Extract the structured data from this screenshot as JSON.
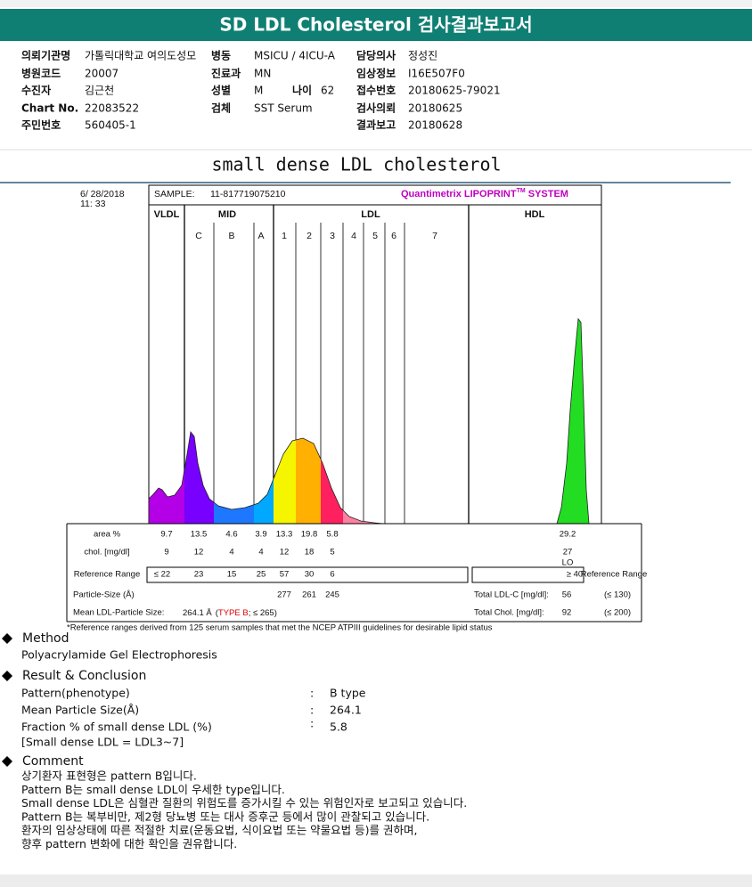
{
  "header": {
    "title": "SD LDL Cholesterol 검사결과보고서"
  },
  "info": [
    [
      {
        "label": "의뢰기관명",
        "value": "가톨릭대학교 여의도성모"
      },
      {
        "label": "병동",
        "value": "MSICU / 4ICU-A"
      },
      {
        "label": "담당의사",
        "value": "정성진"
      }
    ],
    [
      {
        "label": "병원코드",
        "value": "20007"
      },
      {
        "label": "진료과",
        "value": "MN"
      },
      {
        "label": "임상정보",
        "value": "I16E507F0"
      }
    ],
    [
      {
        "label": "수진자",
        "value": "김근천"
      },
      {
        "label": "성별",
        "value": "M"
      },
      {
        "label": "나이",
        "value": "62"
      },
      {
        "label": "접수번호",
        "value": "20180625-79021"
      }
    ],
    [
      {
        "label": "Chart No.",
        "value": "22083522"
      },
      {
        "label": "검체",
        "value": "SST Serum"
      },
      {
        "label": "검사의뢰",
        "value": "20180625"
      }
    ],
    [
      {
        "label": "주민번호",
        "value": "560405-1"
      },
      {
        "label": "결과보고",
        "value": "20180628"
      }
    ]
  ],
  "section_title": "small dense LDL cholesterol",
  "lipoprint": {
    "date": "6/ 28/2018",
    "time": "11: 33",
    "sample_label": "SAMPLE:",
    "sample_id": "11-817719075210",
    "brand": "Quantimetrix LIPOPRINT",
    "tm": "TM",
    "system": " SYSTEM",
    "groups": [
      "VLDL",
      "MID",
      "LDL",
      "HDL"
    ],
    "fractions": [
      "C",
      "B",
      "A",
      "1",
      "2",
      "3",
      "4",
      "5",
      "6",
      "7"
    ],
    "rows": [
      {
        "label": "area %",
        "values": [
          "9.7",
          "13.5",
          "4.6",
          "3.9",
          "13.3",
          "19.8",
          "5.8"
        ],
        "hdl": "29.2"
      },
      {
        "label": "chol. [mg/dl]",
        "values": [
          "9",
          "12",
          "4",
          "4",
          "12",
          "18",
          "5"
        ],
        "hdl": "27",
        "flag": "LO"
      },
      {
        "label": "Reference Range",
        "values": [
          "≤ 22",
          "23",
          "15",
          "25",
          "57",
          "30",
          "6"
        ],
        "hdl": "≥ 40",
        "right_label": "Reference Range"
      }
    ],
    "particle_size": {
      "label": "Particle-Size (Å)",
      "values": [
        "277",
        "261",
        "245"
      ]
    },
    "total_ldl": {
      "label": "Total LDL-C [mg/dl]:",
      "value": "56",
      "range": "(≤ 130)"
    },
    "mean_size": {
      "label": "Mean LDL-Particle Size:",
      "value": "264.1 Å",
      "open": "(",
      "type": "TYPE B",
      "rest": "; ≤ 265)"
    },
    "total_chol": {
      "label": "Total Chol. [mg/dl]:",
      "value": "92",
      "range": "(≤ 200)"
    },
    "footnote": "*Reference ranges derived from 125 serum samples that met the NCEP ATPIII guidelines for desirable lipid status"
  },
  "method": {
    "title": "Method",
    "text": "Polyacrylamide Gel Electrophoresis"
  },
  "result": {
    "title": "Result & Conclusion",
    "rows": [
      {
        "label": "Pattern(phenotype)",
        "sep": ":",
        "value": "B type"
      },
      {
        "label": "Mean Particle Size(Å)",
        "sep": ":",
        "value": "264.1"
      },
      {
        "label": "Fraction % of small dense LDL (%)",
        "sep": ":",
        "value": "5.8"
      }
    ],
    "note": "[Small dense LDL = LDL3~7]"
  },
  "comment": {
    "title": "Comment",
    "lines": [
      "상기환자 표현형은 pattern B입니다.",
      "Pattern B는 small dense LDL이 우세한 type입니다.",
      "Small dense LDL은 심혈관 질환의 위험도를 증가시킬 수 있는 위험인자로 보고되고 있습니다.",
      "Pattern B는 복부비만, 제2형 당뇨병 또는 대사 증후군 등에서 많이 관찰되고 있습니다.",
      "환자의 임상상태에 따른 적절한 치료(운동요법, 식이요법 또는 약물요법 등)를 권하며,",
      "향후 pattern 변화에 대한 확인을 권유합니다."
    ]
  }
}
